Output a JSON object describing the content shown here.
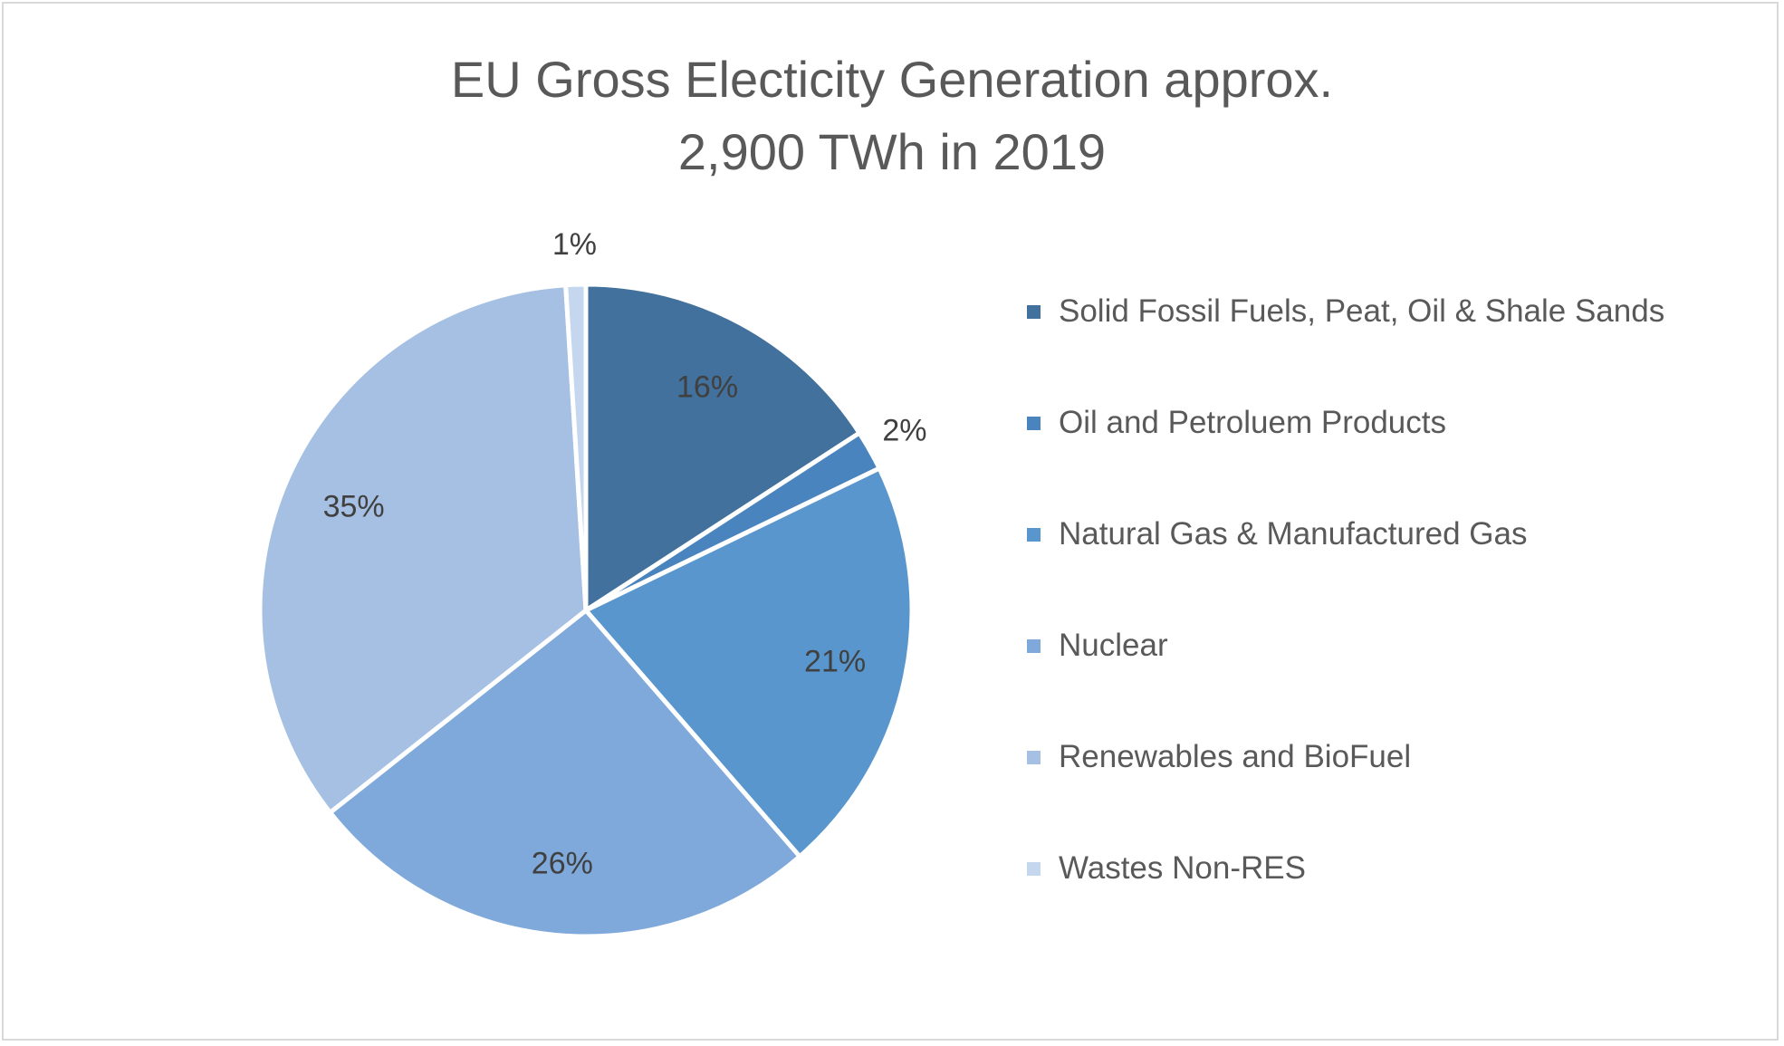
{
  "chart_data": {
    "type": "pie",
    "title": "EU Gross Electicity Generation approx. 2,900 TWh in 2019",
    "title_lines": [
      "EU Gross Electicity Generation approx.",
      "2,900 TWh in 2019"
    ],
    "categories": [
      "Solid Fossil Fuels, Peat, Oil & Shale Sands",
      "Oil and Petroluem Products",
      "Natural Gas & Manufactured Gas",
      "Nuclear",
      "Renewables and BioFuel",
      "Wastes Non-RES"
    ],
    "values": [
      16,
      2,
      21,
      26,
      35,
      1
    ],
    "data_labels": [
      "16%",
      "2%",
      "21%",
      "26%",
      "35%",
      "1%"
    ],
    "colors": [
      "#41719c",
      "#4a84be",
      "#5896cd",
      "#7ea9da",
      "#a5c0e3",
      "#c5d6ef"
    ],
    "legend_placement": "right",
    "grid": false
  }
}
